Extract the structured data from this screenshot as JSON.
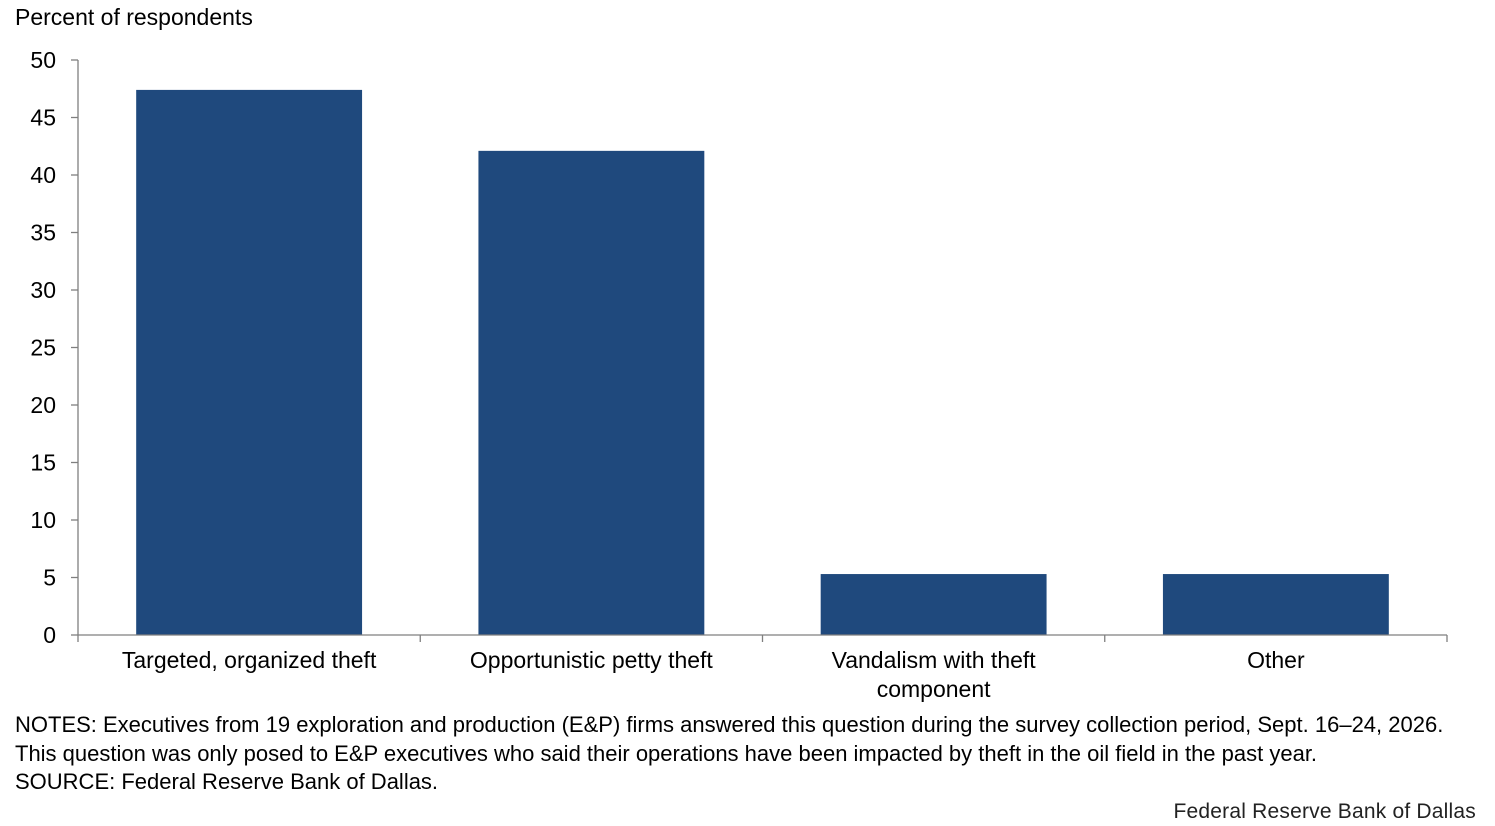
{
  "chart_data": {
    "type": "bar",
    "ylabel": "Percent of respondents",
    "xlabel": "",
    "categories": [
      [
        "Targeted, organized theft"
      ],
      [
        "Opportunistic petty theft"
      ],
      [
        "Vandalism with theft",
        "component"
      ],
      [
        "Other"
      ]
    ],
    "values": [
      47.4,
      42.1,
      5.3,
      5.3
    ],
    "ylim": [
      0,
      50
    ],
    "yticks": [
      0,
      5,
      10,
      15,
      20,
      25,
      30,
      35,
      40,
      45,
      50
    ],
    "grid": false,
    "bar_color": "#1f497d",
    "axis_color": "#7f7f7f"
  },
  "notes": {
    "line1": "NOTES: Executives from 19 exploration and production (E&P) firms answered this question during the survey collection period, Sept. 16–24, 2026. This question was only posed to E&P executives who said their operations have been impacted by theft in the oil field in the past year.",
    "line2": "SOURCE: Federal Reserve Bank of Dallas."
  },
  "credit": "Federal Reserve Bank of Dallas"
}
